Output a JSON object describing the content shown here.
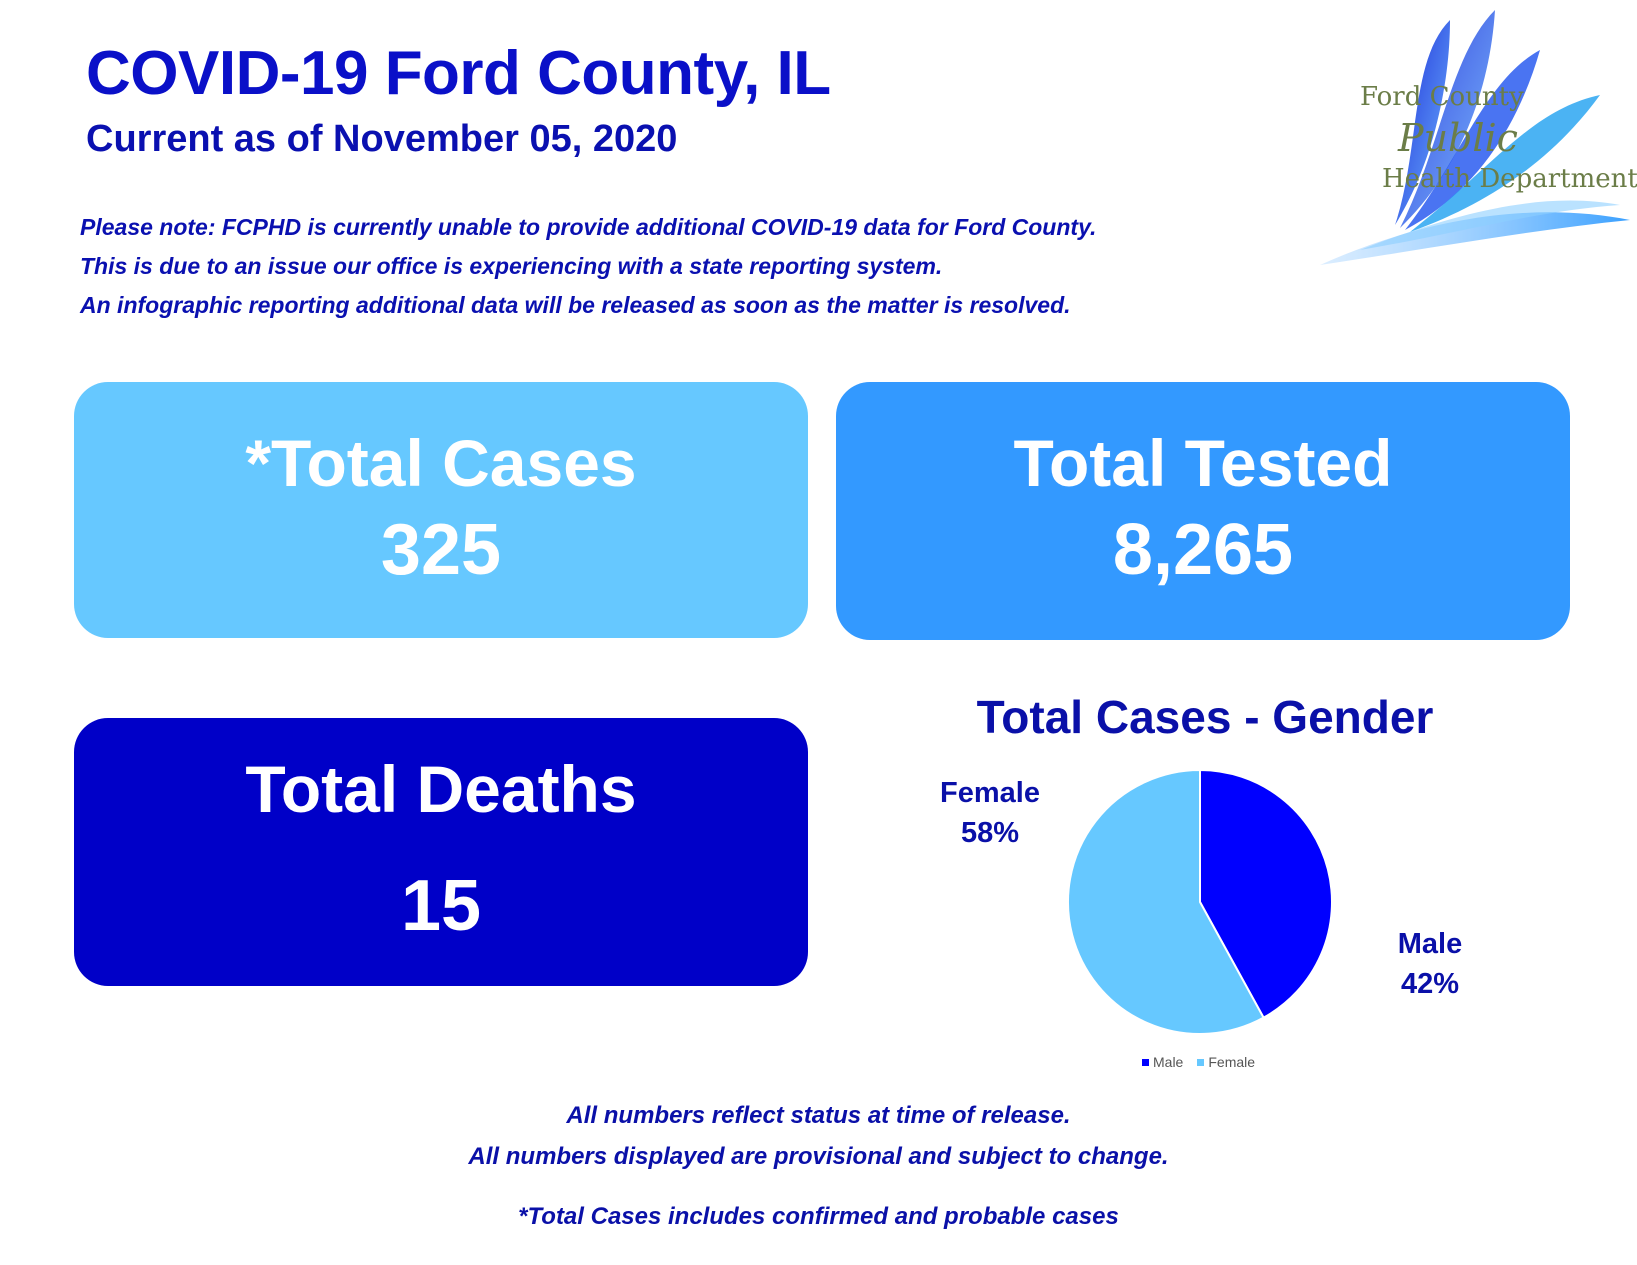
{
  "header": {
    "title": "COVID-19 Ford County, IL",
    "subtitle": "Current as of November 05, 2020"
  },
  "notice": {
    "lines": [
      "Please note: FCPHD is currently unable to provide additional COVID-19 data for Ford County.",
      "This is due to an issue our office is experiencing with a state reporting system.",
      "An infographic reporting additional data will be released as soon as the matter is resolved."
    ]
  },
  "logo": {
    "line1": "Ford County",
    "line2": "Public",
    "line3": "Health Department"
  },
  "stats": {
    "cases": {
      "label": "*Total Cases",
      "value": "325"
    },
    "tested": {
      "label": "Total Tested",
      "value": "8,265"
    },
    "deaths": {
      "label": "Total Deaths",
      "value": "15"
    }
  },
  "chart_data": {
    "type": "pie",
    "title": "Total Cases - Gender",
    "categories": [
      "Male",
      "Female"
    ],
    "values": [
      42,
      58
    ],
    "value_labels": [
      "42%",
      "58%"
    ],
    "colors": [
      "#0000ff",
      "#66c8ff"
    ],
    "legend": "bottom"
  },
  "footer": {
    "line1": "All numbers reflect status at time of release.",
    "line2": "All numbers displayed are provisional and subject to change.",
    "line3": "*Total Cases includes confirmed and probable cases"
  },
  "colors": {
    "cases_card": "#66c8ff",
    "tested_card": "#3399ff",
    "deaths_card": "#0000c8",
    "heading_text": "#0a10c8"
  }
}
